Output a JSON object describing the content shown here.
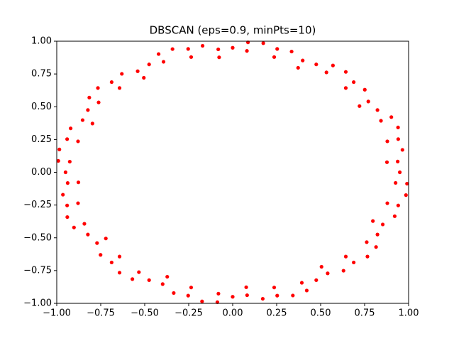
{
  "chart_data": {
    "type": "scatter",
    "title": "DBSCAN (eps=0.9, minPts=10)",
    "color": "#ff0000",
    "xlim": [
      -1,
      1
    ],
    "ylim": [
      -1,
      1
    ],
    "xticks": [
      {
        "value": -1,
        "label": "−1.00"
      },
      {
        "value": -0.75,
        "label": "−0.75"
      },
      {
        "value": -0.5,
        "label": "−0.50"
      },
      {
        "value": -0.25,
        "label": "−0.25"
      },
      {
        "value": 0,
        "label": "0.00"
      },
      {
        "value": 0.25,
        "label": "0.25"
      },
      {
        "value": 0.5,
        "label": "0.50"
      },
      {
        "value": 0.75,
        "label": "0.75"
      },
      {
        "value": 1,
        "label": "1.00"
      }
    ],
    "yticks": [
      {
        "value": -1,
        "label": "−1.00"
      },
      {
        "value": -0.75,
        "label": "−0.75"
      },
      {
        "value": -0.5,
        "label": "−0.50"
      },
      {
        "value": -0.25,
        "label": "−0.25"
      },
      {
        "value": 0,
        "label": "0.00"
      },
      {
        "value": 0.25,
        "label": "0.25"
      },
      {
        "value": 0.5,
        "label": "0.50"
      },
      {
        "value": 0.75,
        "label": "0.75"
      },
      {
        "value": 1,
        "label": "1.00"
      }
    ],
    "x": [
      0.95,
      0.877,
      0.965,
      0.879,
      0.94,
      0.843,
      0.823,
      0.721,
      0.751,
      0.643,
      0.643,
      0.533,
      0.475,
      0.372,
      0.335,
      0.236,
      0.174,
      0.081,
      0,
      -0.077,
      -0.171,
      -0.236,
      -0.342,
      -0.393,
      -0.475,
      -0.505,
      -0.63,
      -0.643,
      -0.766,
      -0.762,
      -0.823,
      -0.797,
      -0.921,
      -0.879,
      -0.985,
      -0.926,
      -0.95,
      -0.877,
      -0.965,
      -0.879,
      -0.94,
      -0.843,
      -0.823,
      -0.721,
      -0.751,
      -0.643,
      -0.643,
      -0.533,
      -0.475,
      -0.372,
      -0.335,
      -0.236,
      -0.174,
      -0.081,
      0,
      0.077,
      0.171,
      0.236,
      0.342,
      0.393,
      0.475,
      0.505,
      0.63,
      0.643,
      0.766,
      0.762,
      0.823,
      0.797,
      0.921,
      0.879,
      0.985,
      0.926,
      0.938,
      0.941,
      0.902,
      0.771,
      0.688,
      0.57,
      0.398,
      0.253,
      0.087,
      -0.082,
      -0.253,
      -0.421,
      -0.54,
      -0.688,
      -0.815,
      -0.853,
      -0.941,
      -0.991,
      -0.938,
      -0.941,
      -0.902,
      -0.771,
      -0.688,
      -0.57,
      -0.398,
      -0.253,
      -0.087,
      0.082,
      0.253,
      0.421,
      0.54,
      0.688,
      0.815,
      0.853,
      0.941,
      0.991
    ],
    "values": [
      0,
      0.077,
      0.171,
      0.236,
      0.342,
      0.393,
      0.475,
      0.505,
      0.63,
      0.643,
      0.766,
      0.762,
      0.823,
      0.797,
      0.921,
      0.879,
      0.985,
      0.926,
      0.95,
      0.877,
      0.965,
      0.879,
      0.94,
      0.843,
      0.823,
      0.721,
      0.751,
      0.643,
      0.643,
      0.533,
      0.475,
      0.372,
      0.335,
      0.236,
      0.174,
      0.081,
      0,
      -0.077,
      -0.171,
      -0.236,
      -0.342,
      -0.393,
      -0.475,
      -0.505,
      -0.63,
      -0.643,
      -0.766,
      -0.762,
      -0.823,
      -0.797,
      -0.921,
      -0.879,
      -0.985,
      -0.926,
      -0.95,
      -0.877,
      -0.965,
      -0.879,
      -0.94,
      -0.843,
      -0.823,
      -0.721,
      -0.751,
      -0.643,
      -0.643,
      -0.533,
      -0.475,
      -0.372,
      -0.335,
      -0.236,
      -0.174,
      -0.081,
      0.082,
      0.253,
      0.421,
      0.54,
      0.688,
      0.815,
      0.853,
      0.941,
      0.991,
      0.938,
      0.941,
      0.902,
      0.771,
      0.688,
      0.57,
      0.398,
      0.253,
      0.087,
      -0.082,
      -0.253,
      -0.421,
      -0.54,
      -0.688,
      -0.815,
      -0.853,
      -0.941,
      -0.991,
      -0.938,
      -0.941,
      -0.902,
      -0.771,
      -0.688,
      -0.57,
      -0.398,
      -0.253,
      -0.087
    ]
  }
}
